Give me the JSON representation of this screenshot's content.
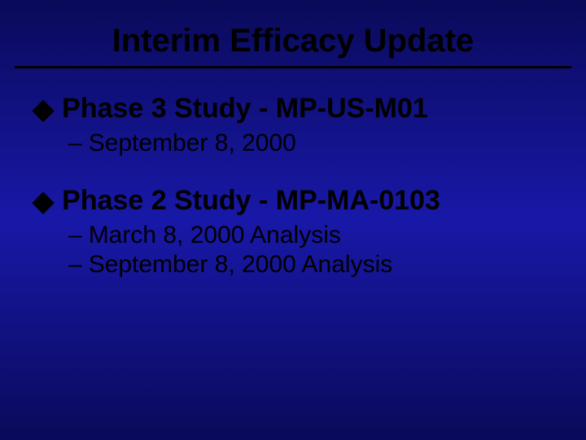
{
  "title": "Interim Efficacy Update",
  "items": [
    {
      "label": "Phase 3 Study - MP-US-M01",
      "sub": [
        "September 8, 2000"
      ]
    },
    {
      "label": "Phase 2 Study - MP-MA-0103",
      "sub": [
        "March 8, 2000 Analysis",
        "September 8, 2000 Analysis"
      ]
    }
  ],
  "style": {
    "background_gradient": [
      "#0a0a5a",
      "#1818a8",
      "#0a0a5a"
    ],
    "text_color": "#000000",
    "title_fontsize": 40,
    "lvl1_fontsize": 34,
    "lvl2_fontsize": 30,
    "rule_color": "#000000",
    "rule_width": 3,
    "bullet_glyph": "◆",
    "dash_glyph": "–",
    "font_family": "Arial"
  }
}
